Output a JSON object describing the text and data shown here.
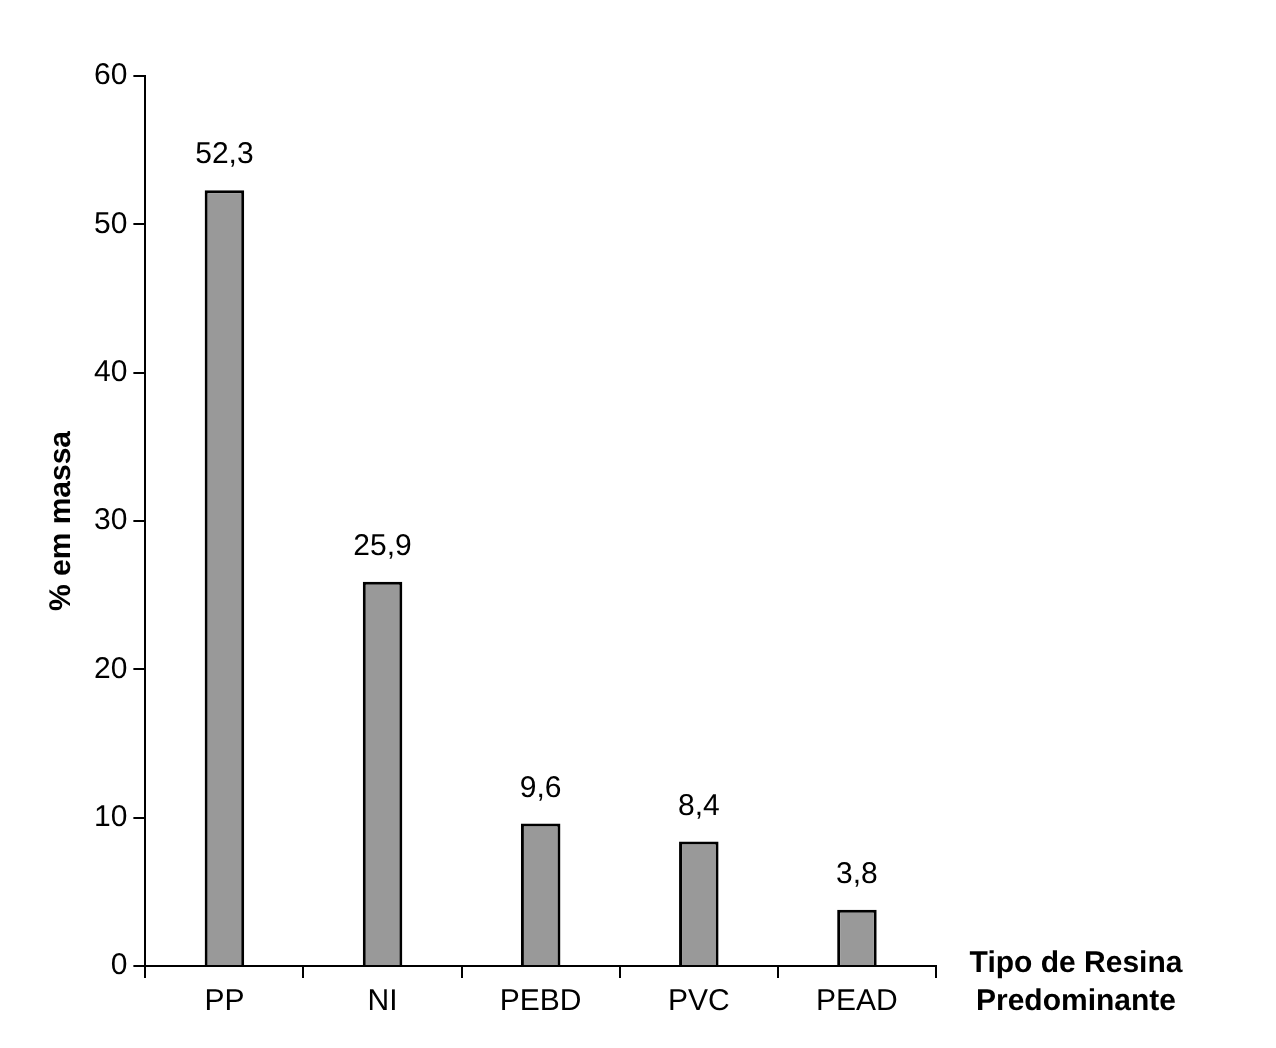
{
  "chart_data": {
    "type": "bar",
    "categories": [
      "PP",
      "NI",
      "PEBD",
      "PVC",
      "PEAD"
    ],
    "values": [
      52.3,
      25.9,
      9.6,
      8.4,
      3.8
    ],
    "value_labels": [
      "52,3",
      "25,9",
      "9,6",
      "8,4",
      "3,8"
    ],
    "color": "#999999",
    "ylabel": "% em massa",
    "xlabel": "Tipo de Resina Predominante",
    "ylim": [
      0,
      60
    ],
    "yticks": [
      0,
      10,
      20,
      30,
      40,
      50,
      60
    ],
    "grid": false,
    "legend": false
  }
}
